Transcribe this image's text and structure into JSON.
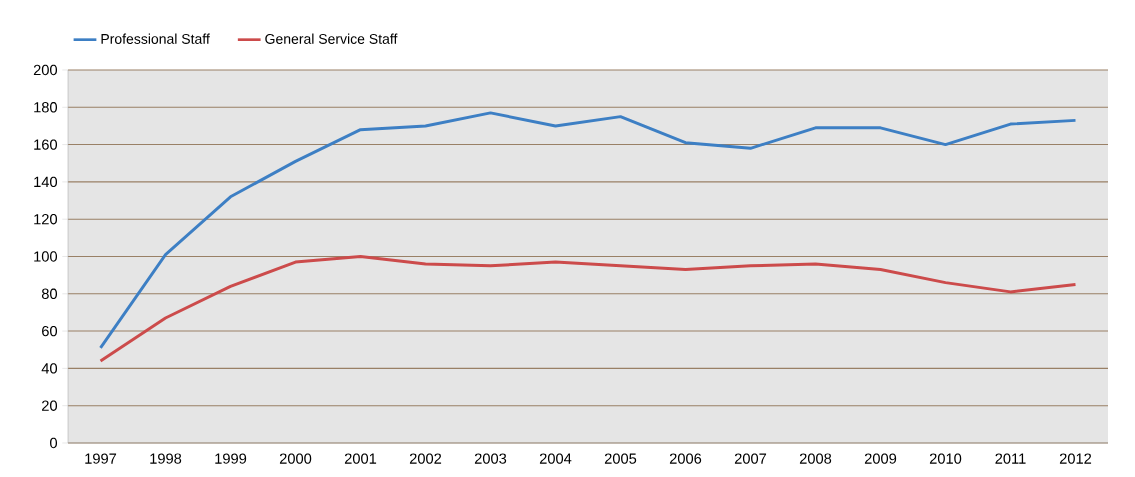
{
  "chart_data": {
    "type": "line",
    "categories": [
      "1997",
      "1998",
      "1999",
      "2000",
      "2001",
      "2002",
      "2003",
      "2004",
      "2005",
      "2006",
      "2007",
      "2008",
      "2009",
      "2010",
      "2011",
      "2012"
    ],
    "series": [
      {
        "name": "Professional Staff",
        "color": "#3d7fc4",
        "values": [
          51,
          101,
          132,
          151,
          168,
          170,
          177,
          170,
          175,
          161,
          158,
          169,
          169,
          160,
          171,
          173
        ]
      },
      {
        "name": "General Service Staff",
        "color": "#cc4b4b",
        "values": [
          44,
          67,
          84,
          97,
          100,
          96,
          95,
          97,
          95,
          93,
          95,
          96,
          93,
          86,
          81,
          85
        ]
      }
    ],
    "ylim": [
      0,
      200
    ],
    "yticks": [
      0,
      20,
      40,
      60,
      80,
      100,
      120,
      140,
      160,
      180,
      200
    ],
    "grid": "y",
    "legend": "top left",
    "marker": "none",
    "line_style": "solid"
  }
}
